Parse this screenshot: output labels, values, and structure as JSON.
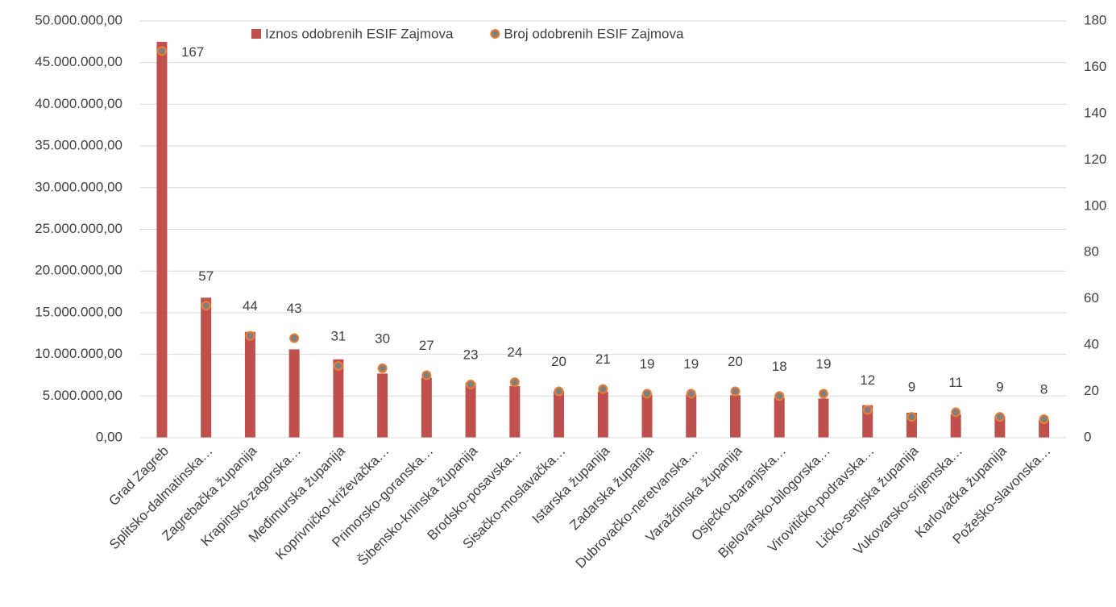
{
  "chart_data": {
    "type": "bar",
    "categories": [
      "Grad Zagreb",
      "Splitsko-dalmatinska…",
      "Zagrebačka županija",
      "Krapinsko-zagorska…",
      "Međimurska županija",
      "Koprivničko-križevačka…",
      "Primorsko-goranska…",
      "Šibensko-kninska županija",
      "Brodsko-posavska…",
      "Sisačko-moslavačka…",
      "Istarska županija",
      "Zadarska županija",
      "Dubrovačko-neretvanska…",
      "Varaždinska županija",
      "Osječko-baranjska…",
      "Bjelovarsko-bilogorska…",
      "Virovitičko-podravska…",
      "Ličko-senjska županija",
      "Vukovarsko-srijemska…",
      "Karlovačka županija",
      "Požeško-slavonska…"
    ],
    "series": [
      {
        "name": "Iznos odobrenih ESIF Zajmova",
        "type": "bar",
        "color": "#c0504d",
        "values": [
          47500000,
          16800000,
          12700000,
          10600000,
          9400000,
          7700000,
          7200000,
          6600000,
          6200000,
          5600000,
          5500000,
          5200000,
          5200000,
          5100000,
          4800000,
          4700000,
          3900000,
          3000000,
          2800000,
          2600000,
          2100000
        ]
      },
      {
        "name": "Broj odobrenih ESIF Zajmova",
        "type": "scatter",
        "axis": "y2",
        "color": "#7f7f7f",
        "edge_color": "#ed7d31",
        "values": [
          167,
          57,
          44,
          43,
          31,
          30,
          27,
          23,
          24,
          20,
          21,
          19,
          19,
          20,
          18,
          19,
          12,
          9,
          11,
          9,
          8
        ]
      }
    ],
    "ylim": [
      0,
      50000000
    ],
    "yticks": [
      {
        "value": 0,
        "label": "0,00"
      },
      {
        "value": 5000000,
        "label": "5.000.000,00"
      },
      {
        "value": 10000000,
        "label": "10.000.000,00"
      },
      {
        "value": 15000000,
        "label": "15.000.000,00"
      },
      {
        "value": 20000000,
        "label": "20.000.000,00"
      },
      {
        "value": 25000000,
        "label": "25.000.000,00"
      },
      {
        "value": 30000000,
        "label": "30.000.000,00"
      },
      {
        "value": 35000000,
        "label": "35.000.000,00"
      },
      {
        "value": 40000000,
        "label": "40.000.000,00"
      },
      {
        "value": 45000000,
        "label": "45.000.000,00"
      },
      {
        "value": 50000000,
        "label": "50.000.000,00"
      }
    ],
    "y2lim": [
      0,
      180
    ],
    "y2ticks": [
      0,
      20,
      40,
      60,
      80,
      100,
      120,
      140,
      160,
      180
    ],
    "grid": true,
    "legend": "top"
  }
}
